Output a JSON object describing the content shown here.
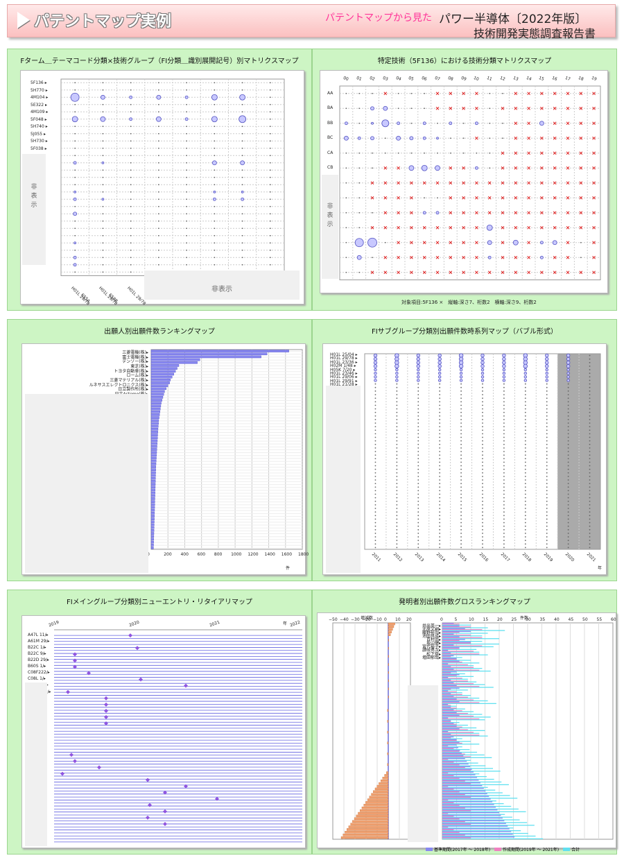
{
  "header": {
    "title": "パテントマップ実例",
    "subtitle": "パテントマップから見た",
    "report_title": "パワー半導体〔2022年版〕",
    "report_sub": "技術開発実態調査報告書"
  },
  "panels": {
    "p1": {
      "title": "Fターム＿テーマコード分類×技術グループ（FI分類＿識別展開記号）別マトリクスマップ",
      "rows": [
        "5F136",
        "5H770",
        "4M104",
        "5E322",
        "4M109",
        "5F048",
        "5H740",
        "5J055",
        "5H730",
        "5F038"
      ],
      "cols": [
        "H01L 29/78",
        "655A",
        "H01L 29/78",
        "658B",
        "H01L 29/78"
      ],
      "hidden_v": "非\n表\n示",
      "hidden_h": "非表示"
    },
    "p2": {
      "title": "特定技術（5F136）における技術分類マトリクスマップ",
      "cols": [
        "00",
        "01",
        "02",
        "03",
        "04",
        "05",
        "06",
        "07",
        "08",
        "09",
        "10",
        "11",
        "12",
        "13",
        "14",
        "15",
        "16",
        "17",
        "18",
        "19"
      ],
      "rows": [
        "AA",
        "BA",
        "BB",
        "BC",
        "CA",
        "CB"
      ],
      "hidden_v": "非\n表\n示",
      "footer": "対象項目:5F136 ×　縦軸:深さ7、桁数2　横軸:深さ9、桁数2"
    },
    "p3": {
      "title": "出願人別出願件数ランキングマップ",
      "names": [
        "三菱電機(株)",
        "富士電機(株)",
        "デンソー(株)",
        "東芝(株)",
        "トヨタ自動車(株)",
        "ローム(株)",
        "三菱マテリアル(株)",
        "ルネサスエレクトロニクス(株)",
        "日立製作所(株)",
        "日立Astemo(株)"
      ],
      "ticks": [
        "0",
        "200",
        "400",
        "600",
        "800",
        "1000",
        "1200",
        "1400",
        "1600",
        "1800"
      ],
      "unit": "件"
    },
    "p4": {
      "title": "FIサブグループ分類別出願件数時系列マップ（バブル形式）",
      "rows": [
        "H01L 25/04",
        "H01L 29/78",
        "H01L 23/36",
        "H02M 1/48",
        "H05K 7/20",
        "H01L 23/46",
        "H01L 29/06",
        "H01L 29/91",
        "H01L 21/28",
        "H01L 23/12"
      ],
      "years": [
        "2011",
        "2012",
        "2013",
        "2014",
        "2015",
        "2016",
        "2017",
        "2018",
        "2019",
        "2020",
        "2021"
      ],
      "unit": "年"
    },
    "p5": {
      "title": "FIメイングループ分類別ニューエントリ・リタイアリマップ",
      "rows": [
        "A47L 11/",
        "A61M 29/",
        "B22C 1/",
        "B22C 9/",
        "B22D 29/",
        "B60S 1/",
        "C08F222/",
        "C08L 1/",
        "C08L 21/",
        "C10M101/"
      ],
      "years": [
        "2019",
        "2020",
        "2021",
        "2022"
      ],
      "unit": "年"
    },
    "p6": {
      "title": "発明者別出願件数グロスランキングマップ",
      "left_label": "増減数",
      "left_ticks": [
        "−50",
        "−40",
        "−30",
        "−20",
        "−10",
        "0",
        "10",
        "20"
      ],
      "right_label": "件数",
      "right_ticks": [
        "0",
        "5",
        "10",
        "15",
        "20",
        "25",
        "30",
        "35",
        "40",
        "45",
        "50",
        "55",
        "60"
      ],
      "names": [
        "井出英一",
        "北原文嗣",
        "藤野裕司",
        "池田良成",
        "百村尚",
        "坂山健",
        "宮代裕子",
        "讃岐勇次",
        "松下奨",
        "増田郁哉"
      ],
      "legend": [
        "基準期間(2017年 ～ 2018年)",
        "作成期間(2019年 ～ 2021年)",
        "合計"
      ]
    }
  }
}
